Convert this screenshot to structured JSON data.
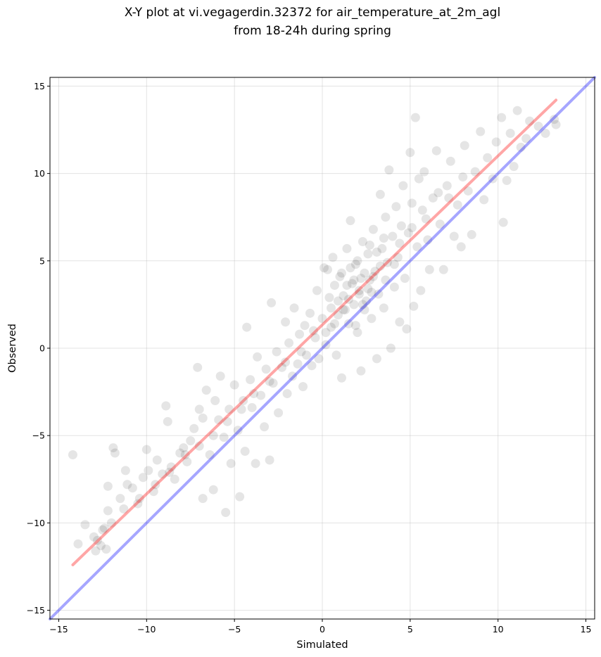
{
  "chart_data": {
    "type": "scatter",
    "title_line1": "X-Y plot at vi.vegagerdin.32372 for air_temperature_at_2m_agl",
    "title_line2": "from 18-24h during spring",
    "xlabel": "Simulated",
    "ylabel": "Observed",
    "xlim": [
      -15.5,
      15.5
    ],
    "ylim": [
      -15.5,
      15.5
    ],
    "xticks": [
      -15,
      -10,
      -5,
      0,
      5,
      10,
      15
    ],
    "yticks": [
      -15,
      -10,
      -5,
      0,
      5,
      10,
      15
    ],
    "xtick_labels": [
      "−15",
      "−10",
      "−5",
      "0",
      "5",
      "10",
      "15"
    ],
    "ytick_labels": [
      "−15",
      "−10",
      "−5",
      "0",
      "5",
      "10",
      "15"
    ],
    "grid": true,
    "point_color": "#000000",
    "point_alpha": 0.1,
    "fit_line": {
      "color": "#ff0000",
      "alpha": 0.35,
      "x": [
        -14.2,
        13.3
      ],
      "y": [
        -12.4,
        14.2
      ]
    },
    "identity_line": {
      "color": "#0000ff",
      "alpha": 0.35,
      "x": [
        -15.5,
        15.5
      ],
      "y": [
        -15.5,
        15.5
      ]
    },
    "points": [
      [
        -14.2,
        -6.1
      ],
      [
        -13.9,
        -11.2
      ],
      [
        -13.5,
        -10.1
      ],
      [
        -13.0,
        -10.8
      ],
      [
        -12.9,
        -11.6
      ],
      [
        -12.8,
        -11.0
      ],
      [
        -12.6,
        -11.3
      ],
      [
        -12.5,
        -10.4
      ],
      [
        -12.3,
        -11.5
      ],
      [
        -12.2,
        -7.9
      ],
      [
        -12.2,
        -9.3
      ],
      [
        -12.0,
        -10.0
      ],
      [
        -11.9,
        -5.7
      ],
      [
        -11.8,
        -6.0
      ],
      [
        -11.5,
        -8.6
      ],
      [
        -11.2,
        -7.0
      ],
      [
        -11.1,
        -7.8
      ],
      [
        -10.8,
        -8.0
      ],
      [
        -10.5,
        -8.9
      ],
      [
        -10.2,
        -7.4
      ],
      [
        -10.0,
        -5.8
      ],
      [
        -9.9,
        -7.0
      ],
      [
        -9.6,
        -8.2
      ],
      [
        -9.4,
        -6.4
      ],
      [
        -9.1,
        -7.2
      ],
      [
        -8.9,
        -3.3
      ],
      [
        -8.8,
        -4.2
      ],
      [
        -8.6,
        -6.8
      ],
      [
        -8.4,
        -7.5
      ],
      [
        -8.1,
        -6.0
      ],
      [
        -7.9,
        -5.7
      ],
      [
        -7.7,
        -6.5
      ],
      [
        -7.5,
        -5.3
      ],
      [
        -7.3,
        -4.6
      ],
      [
        -7.1,
        -1.1
      ],
      [
        -7.0,
        -3.5
      ],
      [
        -6.8,
        -8.6
      ],
      [
        -6.8,
        -4.0
      ],
      [
        -6.6,
        -2.4
      ],
      [
        -6.4,
        -6.1
      ],
      [
        -6.2,
        -8.1
      ],
      [
        -6.1,
        -3.0
      ],
      [
        -5.9,
        -4.1
      ],
      [
        -5.8,
        -1.6
      ],
      [
        -5.6,
        -5.1
      ],
      [
        -5.5,
        -9.4
      ],
      [
        -5.3,
        -3.5
      ],
      [
        -5.2,
        -6.6
      ],
      [
        -5.0,
        -2.1
      ],
      [
        -4.8,
        -4.7
      ],
      [
        -4.7,
        -8.5
      ],
      [
        -4.5,
        -3.0
      ],
      [
        -4.4,
        -5.9
      ],
      [
        -4.3,
        1.2
      ],
      [
        -4.1,
        -1.8
      ],
      [
        -4.0,
        -3.4
      ],
      [
        -3.8,
        -6.6
      ],
      [
        -3.7,
        -0.5
      ],
      [
        -3.5,
        -2.7
      ],
      [
        -3.3,
        -4.5
      ],
      [
        -3.2,
        -1.2
      ],
      [
        -3.0,
        -6.4
      ],
      [
        -2.9,
        2.6
      ],
      [
        -2.8,
        -2.0
      ],
      [
        -2.6,
        -0.2
      ],
      [
        -2.5,
        -3.7
      ],
      [
        -2.3,
        -1.1
      ],
      [
        -2.1,
        1.5
      ],
      [
        -2.0,
        -2.6
      ],
      [
        -1.9,
        0.3
      ],
      [
        -1.7,
        -1.6
      ],
      [
        -1.6,
        2.3
      ],
      [
        -1.4,
        -0.9
      ],
      [
        -1.3,
        0.8
      ],
      [
        -1.1,
        -2.2
      ],
      [
        -1.0,
        1.3
      ],
      [
        -0.9,
        -0.4
      ],
      [
        -0.7,
        2.0
      ],
      [
        -0.6,
        -1.0
      ],
      [
        -0.4,
        0.6
      ],
      [
        -0.3,
        3.3
      ],
      [
        -0.2,
        -0.6
      ],
      [
        0.0,
        1.7
      ],
      [
        0.1,
        4.6
      ],
      [
        0.2,
        0.2
      ],
      [
        0.4,
        2.9
      ],
      [
        0.5,
        1.2
      ],
      [
        0.6,
        5.2
      ],
      [
        0.7,
        3.6
      ],
      [
        0.8,
        -0.4
      ],
      [
        0.9,
        1.9
      ],
      [
        1.0,
        4.1
      ],
      [
        1.1,
        -1.7
      ],
      [
        1.2,
        3.0
      ],
      [
        1.3,
        2.2
      ],
      [
        1.4,
        5.7
      ],
      [
        1.5,
        1.4
      ],
      [
        1.6,
        7.3
      ],
      [
        1.7,
        3.7
      ],
      [
        1.8,
        2.5
      ],
      [
        1.9,
        4.8
      ],
      [
        2.0,
        0.9
      ],
      [
        2.1,
        3.3
      ],
      [
        2.2,
        -1.3
      ],
      [
        2.3,
        6.1
      ],
      [
        2.4,
        4.3
      ],
      [
        2.5,
        2.7
      ],
      [
        2.6,
        5.4
      ],
      [
        2.7,
        3.9
      ],
      [
        2.8,
        1.7
      ],
      [
        2.9,
        6.8
      ],
      [
        3.0,
        4.4
      ],
      [
        3.1,
        -0.6
      ],
      [
        3.2,
        3.1
      ],
      [
        3.3,
        8.8
      ],
      [
        3.4,
        5.7
      ],
      [
        3.5,
        2.3
      ],
      [
        3.6,
        7.5
      ],
      [
        3.7,
        4.9
      ],
      [
        3.8,
        10.2
      ],
      [
        3.9,
        -0.0
      ],
      [
        4.0,
        6.4
      ],
      [
        4.1,
        3.5
      ],
      [
        4.2,
        8.1
      ],
      [
        4.3,
        5.2
      ],
      [
        4.4,
        1.5
      ],
      [
        4.5,
        7.0
      ],
      [
        4.6,
        9.3
      ],
      [
        4.7,
        4.0
      ],
      [
        4.8,
        1.1
      ],
      [
        4.9,
        6.6
      ],
      [
        5.0,
        11.2
      ],
      [
        5.1,
        8.3
      ],
      [
        5.2,
        2.4
      ],
      [
        5.3,
        13.2
      ],
      [
        5.4,
        5.8
      ],
      [
        5.5,
        9.7
      ],
      [
        5.6,
        3.3
      ],
      [
        5.7,
        7.9
      ],
      [
        5.8,
        10.1
      ],
      [
        6.0,
        6.2
      ],
      [
        6.1,
        4.5
      ],
      [
        6.3,
        8.6
      ],
      [
        6.5,
        11.3
      ],
      [
        6.7,
        7.1
      ],
      [
        6.9,
        4.5
      ],
      [
        7.1,
        9.3
      ],
      [
        7.3,
        10.7
      ],
      [
        7.5,
        6.4
      ],
      [
        7.7,
        8.2
      ],
      [
        7.9,
        5.8
      ],
      [
        8.1,
        11.6
      ],
      [
        8.3,
        9.0
      ],
      [
        8.5,
        6.5
      ],
      [
        8.7,
        10.1
      ],
      [
        9.0,
        12.4
      ],
      [
        9.2,
        8.5
      ],
      [
        9.4,
        10.9
      ],
      [
        9.7,
        9.7
      ],
      [
        9.9,
        11.8
      ],
      [
        10.2,
        13.2
      ],
      [
        10.3,
        7.2
      ],
      [
        10.5,
        9.6
      ],
      [
        10.7,
        12.3
      ],
      [
        10.9,
        10.4
      ],
      [
        11.1,
        13.6
      ],
      [
        11.3,
        11.5
      ],
      [
        11.6,
        12.0
      ],
      [
        11.8,
        13.0
      ],
      [
        12.3,
        12.7
      ],
      [
        12.7,
        12.3
      ],
      [
        13.2,
        13.1
      ],
      [
        13.3,
        12.8
      ],
      [
        0.3,
        4.5
      ],
      [
        1.5,
        2.8
      ],
      [
        2.2,
        4.0
      ],
      [
        2.6,
        3.4
      ],
      [
        1.8,
        3.9
      ],
      [
        2.0,
        5.0
      ],
      [
        3.3,
        4.7
      ],
      [
        1.2,
        2.2
      ],
      [
        0.7,
        1.4
      ],
      [
        2.9,
        4.1
      ],
      [
        2.4,
        2.2
      ],
      [
        1.6,
        4.6
      ],
      [
        3.1,
        5.5
      ],
      [
        0.9,
        2.7
      ],
      [
        2.1,
        3.1
      ],
      [
        1.4,
        3.6
      ],
      [
        2.7,
        5.9
      ],
      [
        3.6,
        3.9
      ],
      [
        0.5,
        2.3
      ],
      [
        1.9,
        1.3
      ],
      [
        2.8,
        3.2
      ],
      [
        3.5,
        6.3
      ],
      [
        4.1,
        4.8
      ],
      [
        1.1,
        4.3
      ],
      [
        2.3,
        2.5
      ],
      [
        0.2,
        0.9
      ],
      [
        -0.5,
        1.0
      ],
      [
        -1.2,
        -0.2
      ],
      [
        -2.1,
        -0.8
      ],
      [
        -3.0,
        -1.9
      ],
      [
        -3.9,
        -2.6
      ],
      [
        -4.6,
        -3.5
      ],
      [
        -5.4,
        -4.2
      ],
      [
        -6.2,
        -5.0
      ],
      [
        -7.0,
        -5.6
      ],
      [
        -7.8,
        -6.1
      ],
      [
        -8.7,
        -7.1
      ],
      [
        -9.5,
        -7.8
      ],
      [
        -10.4,
        -8.6
      ],
      [
        -11.3,
        -9.2
      ],
      [
        -12.4,
        -10.3
      ],
      [
        4.4,
        6.0
      ],
      [
        5.1,
        6.9
      ],
      [
        5.9,
        7.4
      ],
      [
        6.6,
        8.9
      ],
      [
        7.2,
        8.6
      ],
      [
        8.0,
        9.8
      ]
    ]
  }
}
